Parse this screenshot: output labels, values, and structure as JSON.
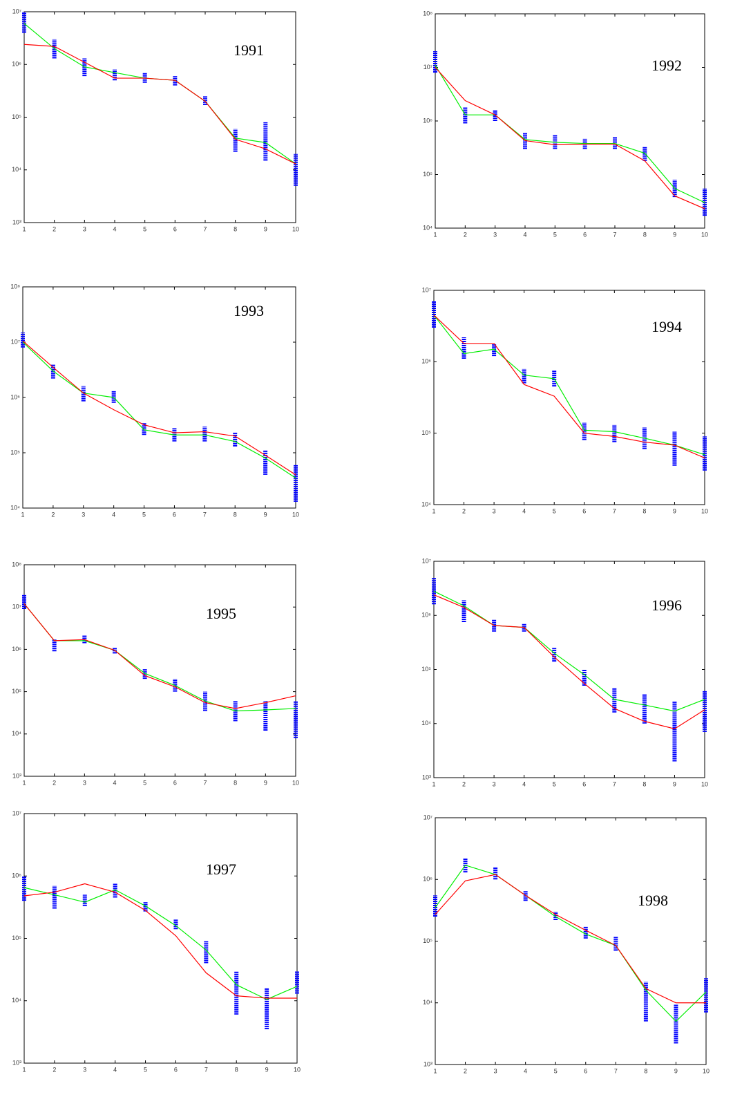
{
  "chart_data": [
    {
      "type": "line",
      "title": "1991",
      "log_y": true,
      "x": [
        1,
        2,
        3,
        4,
        5,
        6,
        7,
        8,
        9,
        10
      ],
      "xlim": [
        1,
        10
      ],
      "xticks": [
        1,
        2,
        3,
        4,
        5,
        6,
        7,
        8,
        9,
        10
      ],
      "ylim": [
        1000,
        10000000
      ],
      "yticks": [
        {
          "value": 1000,
          "label": "10³"
        },
        {
          "value": 10000,
          "label": "10⁴"
        },
        {
          "value": 100000,
          "label": "10⁵"
        },
        {
          "value": 1000000,
          "label": "10⁶"
        },
        {
          "value": 10000000,
          "label": "10⁷"
        }
      ],
      "series": [
        {
          "color": "#00ee00",
          "values": [
            6000000,
            2000000,
            900000,
            700000,
            550000,
            500000,
            200000,
            40000,
            33000,
            13000
          ]
        },
        {
          "color": "#ff0000",
          "values": [
            2400000,
            2200000,
            1100000,
            550000,
            550000,
            500000,
            200000,
            38000,
            25000,
            13000
          ]
        }
      ],
      "ranges": {
        "color": "#0000ff",
        "low": [
          4000000,
          1300000,
          600000,
          500000,
          450000,
          400000,
          170000,
          22000,
          15000,
          5000
        ],
        "high": [
          10000000,
          3000000,
          1300000,
          800000,
          700000,
          600000,
          250000,
          60000,
          80000,
          20000
        ]
      }
    },
    {
      "type": "line",
      "title": "1992",
      "log_y": true,
      "x": [
        1,
        2,
        3,
        4,
        5,
        6,
        7,
        8,
        9,
        10
      ],
      "xlim": [
        1,
        10
      ],
      "xticks": [
        1,
        2,
        3,
        4,
        5,
        6,
        7,
        8,
        9,
        10
      ],
      "ylim": [
        10000,
        100000000
      ],
      "yticks": [
        {
          "value": 10000,
          "label": "10⁴"
        },
        {
          "value": 100000,
          "label": "10⁵"
        },
        {
          "value": 1000000,
          "label": "10⁶"
        },
        {
          "value": 10000000,
          "label": "10⁷"
        },
        {
          "value": 100000000,
          "label": "10⁸"
        }
      ],
      "series": [
        {
          "color": "#00ee00",
          "values": [
            11000000,
            1300000,
            1300000,
            450000,
            400000,
            380000,
            380000,
            250000,
            55000,
            30000
          ]
        },
        {
          "color": "#ff0000",
          "values": [
            10000000,
            2400000,
            1300000,
            430000,
            360000,
            370000,
            370000,
            180000,
            40000,
            23000
          ]
        }
      ],
      "ranges": {
        "color": "#0000ff",
        "low": [
          8000000,
          900000,
          1000000,
          300000,
          300000,
          300000,
          300000,
          180000,
          38000,
          17000
        ],
        "high": [
          20000000,
          1800000,
          1600000,
          600000,
          550000,
          470000,
          500000,
          330000,
          80000,
          55000
        ]
      }
    },
    {
      "type": "line",
      "title": "1993",
      "log_y": true,
      "x": [
        1,
        2,
        3,
        4,
        5,
        6,
        7,
        8,
        9,
        10
      ],
      "xlim": [
        1,
        10
      ],
      "xticks": [
        1,
        2,
        3,
        4,
        5,
        6,
        7,
        8,
        9,
        10
      ],
      "ylim": [
        10000,
        100000000
      ],
      "yticks": [
        {
          "value": 10000,
          "label": "10⁴"
        },
        {
          "value": 100000,
          "label": "10⁵"
        },
        {
          "value": 1000000,
          "label": "10⁶"
        },
        {
          "value": 10000000,
          "label": "10⁷"
        },
        {
          "value": 100000000,
          "label": "10⁸"
        }
      ],
      "series": [
        {
          "color": "#00ee00",
          "values": [
            10000000,
            3000000,
            1200000,
            1000000,
            260000,
            210000,
            210000,
            160000,
            80000,
            35000
          ]
        },
        {
          "color": "#ff0000",
          "values": [
            10500000,
            3500000,
            1200000,
            600000,
            320000,
            230000,
            240000,
            200000,
            90000,
            40000
          ]
        }
      ],
      "ranges": {
        "color": "#0000ff",
        "low": [
          8000000,
          2200000,
          850000,
          800000,
          210000,
          160000,
          160000,
          130000,
          40000,
          13000
        ],
        "high": [
          15000000,
          4000000,
          1600000,
          1300000,
          350000,
          280000,
          300000,
          230000,
          110000,
          60000
        ]
      }
    },
    {
      "type": "line",
      "title": "1994",
      "log_y": true,
      "x": [
        1,
        2,
        3,
        4,
        5,
        6,
        7,
        8,
        9,
        10
      ],
      "xlim": [
        1,
        10
      ],
      "xticks": [
        1,
        2,
        3,
        4,
        5,
        6,
        7,
        8,
        9,
        10
      ],
      "ylim": [
        10000,
        10000000
      ],
      "yticks": [
        {
          "value": 10000,
          "label": "10⁴"
        },
        {
          "value": 100000,
          "label": "10⁵"
        },
        {
          "value": 1000000,
          "label": "10⁶"
        },
        {
          "value": 10000000,
          "label": "10⁷"
        }
      ],
      "series": [
        {
          "color": "#00ee00",
          "values": [
            4500000,
            1300000,
            1500000,
            650000,
            580000,
            110000,
            105000,
            85000,
            68000,
            50000
          ]
        },
        {
          "color": "#ff0000",
          "values": [
            4500000,
            1800000,
            1800000,
            480000,
            330000,
            100000,
            90000,
            75000,
            68000,
            45000
          ]
        }
      ],
      "ranges": {
        "color": "#0000ff",
        "low": [
          3000000,
          1100000,
          1200000,
          500000,
          450000,
          80000,
          75000,
          60000,
          35000,
          30000
        ],
        "high": [
          7000000,
          2200000,
          1800000,
          800000,
          750000,
          140000,
          130000,
          120000,
          105000,
          90000
        ]
      }
    },
    {
      "type": "line",
      "title": "1995",
      "log_y": true,
      "x": [
        1,
        2,
        3,
        4,
        5,
        6,
        7,
        8,
        9,
        10
      ],
      "xlim": [
        1,
        10
      ],
      "xticks": [
        1,
        2,
        3,
        4,
        5,
        6,
        7,
        8,
        9,
        10
      ],
      "ylim": [
        1000,
        100000000
      ],
      "yticks": [
        {
          "value": 1000,
          "label": "10³"
        },
        {
          "value": 10000,
          "label": "10⁴"
        },
        {
          "value": 100000,
          "label": "10⁵"
        },
        {
          "value": 1000000,
          "label": "10⁶"
        },
        {
          "value": 10000000,
          "label": "10⁷"
        },
        {
          "value": 100000000,
          "label": "10⁸"
        }
      ],
      "series": [
        {
          "color": "#00ee00",
          "values": [
            12000000,
            1600000,
            1600000,
            950000,
            270000,
            140000,
            60000,
            35000,
            37000,
            40000
          ]
        },
        {
          "color": "#ff0000",
          "values": [
            12000000,
            1600000,
            1700000,
            950000,
            240000,
            130000,
            55000,
            40000,
            55000,
            80000
          ]
        }
      ],
      "ranges": {
        "color": "#0000ff",
        "low": [
          9000000,
          900000,
          1400000,
          800000,
          200000,
          100000,
          35000,
          20000,
          12000,
          8000
        ],
        "high": [
          20000000,
          1700000,
          2200000,
          1100000,
          350000,
          200000,
          100000,
          60000,
          60000,
          60000
        ]
      }
    },
    {
      "type": "line",
      "title": "1996",
      "log_y": true,
      "x": [
        1,
        2,
        3,
        4,
        5,
        6,
        7,
        8,
        9,
        10
      ],
      "xlim": [
        1,
        10
      ],
      "xticks": [
        1,
        2,
        3,
        4,
        5,
        6,
        7,
        8,
        9,
        10
      ],
      "ylim": [
        1000,
        10000000
      ],
      "yticks": [
        {
          "value": 1000,
          "label": "10³"
        },
        {
          "value": 10000,
          "label": "10⁴"
        },
        {
          "value": 100000,
          "label": "10⁵"
        },
        {
          "value": 1000000,
          "label": "10⁶"
        },
        {
          "value": 10000000,
          "label": "10⁷"
        }
      ],
      "series": [
        {
          "color": "#00ee00",
          "values": [
            2800000,
            1500000,
            650000,
            600000,
            200000,
            80000,
            28000,
            22000,
            17000,
            28000
          ]
        },
        {
          "color": "#ff0000",
          "values": [
            2400000,
            1400000,
            650000,
            600000,
            170000,
            55000,
            19000,
            11000,
            8000,
            18000
          ]
        }
      ],
      "ranges": {
        "color": "#0000ff",
        "low": [
          1600000,
          750000,
          500000,
          500000,
          140000,
          50000,
          16000,
          10000,
          2000,
          7000
        ],
        "high": [
          5000000,
          1900000,
          850000,
          700000,
          250000,
          100000,
          45000,
          35000,
          26000,
          40000
        ]
      }
    },
    {
      "type": "line",
      "title": "1997",
      "log_y": true,
      "x": [
        1,
        2,
        3,
        4,
        5,
        6,
        7,
        8,
        9,
        10
      ],
      "xlim": [
        1,
        10
      ],
      "xticks": [
        1,
        2,
        3,
        4,
        5,
        6,
        7,
        8,
        9,
        10
      ],
      "ylim": [
        1000,
        10000000
      ],
      "yticks": [
        {
          "value": 1000,
          "label": "10³"
        },
        {
          "value": 10000,
          "label": "10⁴"
        },
        {
          "value": 100000,
          "label": "10⁵"
        },
        {
          "value": 1000000,
          "label": "10⁶"
        },
        {
          "value": 10000000,
          "label": "10⁷"
        }
      ],
      "series": [
        {
          "color": "#00ee00",
          "values": [
            650000,
            500000,
            380000,
            600000,
            330000,
            160000,
            65000,
            18000,
            10500,
            17000
          ]
        },
        {
          "color": "#ff0000",
          "values": [
            480000,
            550000,
            750000,
            550000,
            280000,
            110000,
            28000,
            12000,
            11000,
            11000
          ]
        }
      ],
      "ranges": {
        "color": "#0000ff",
        "low": [
          400000,
          300000,
          330000,
          450000,
          270000,
          140000,
          40000,
          6000,
          3500,
          13000
        ],
        "high": [
          1000000,
          700000,
          500000,
          750000,
          380000,
          200000,
          90000,
          30000,
          16000,
          30000
        ]
      }
    },
    {
      "type": "line",
      "title": "1998",
      "log_y": true,
      "x": [
        1,
        2,
        3,
        4,
        5,
        6,
        7,
        8,
        9,
        10
      ],
      "xlim": [
        1,
        10
      ],
      "xticks": [
        1,
        2,
        3,
        4,
        5,
        6,
        7,
        8,
        9,
        10
      ],
      "ylim": [
        1000,
        10000000
      ],
      "yticks": [
        {
          "value": 1000,
          "label": "10³"
        },
        {
          "value": 10000,
          "label": "10⁴"
        },
        {
          "value": 100000,
          "label": "10⁵"
        },
        {
          "value": 1000000,
          "label": "10⁶"
        },
        {
          "value": 10000000,
          "label": "10⁷"
        }
      ],
      "series": [
        {
          "color": "#00ee00",
          "values": [
            350000,
            1700000,
            1200000,
            550000,
            250000,
            130000,
            85000,
            16000,
            5000,
            15000
          ]
        },
        {
          "color": "#ff0000",
          "values": [
            270000,
            950000,
            1200000,
            550000,
            270000,
            150000,
            85000,
            17000,
            10000,
            10000
          ]
        }
      ],
      "ranges": {
        "color": "#0000ff",
        "low": [
          250000,
          1300000,
          1000000,
          450000,
          220000,
          110000,
          70000,
          5000,
          2200,
          7000
        ],
        "high": [
          550000,
          2200000,
          1600000,
          650000,
          300000,
          170000,
          120000,
          22000,
          9500,
          25000
        ]
      }
    }
  ]
}
